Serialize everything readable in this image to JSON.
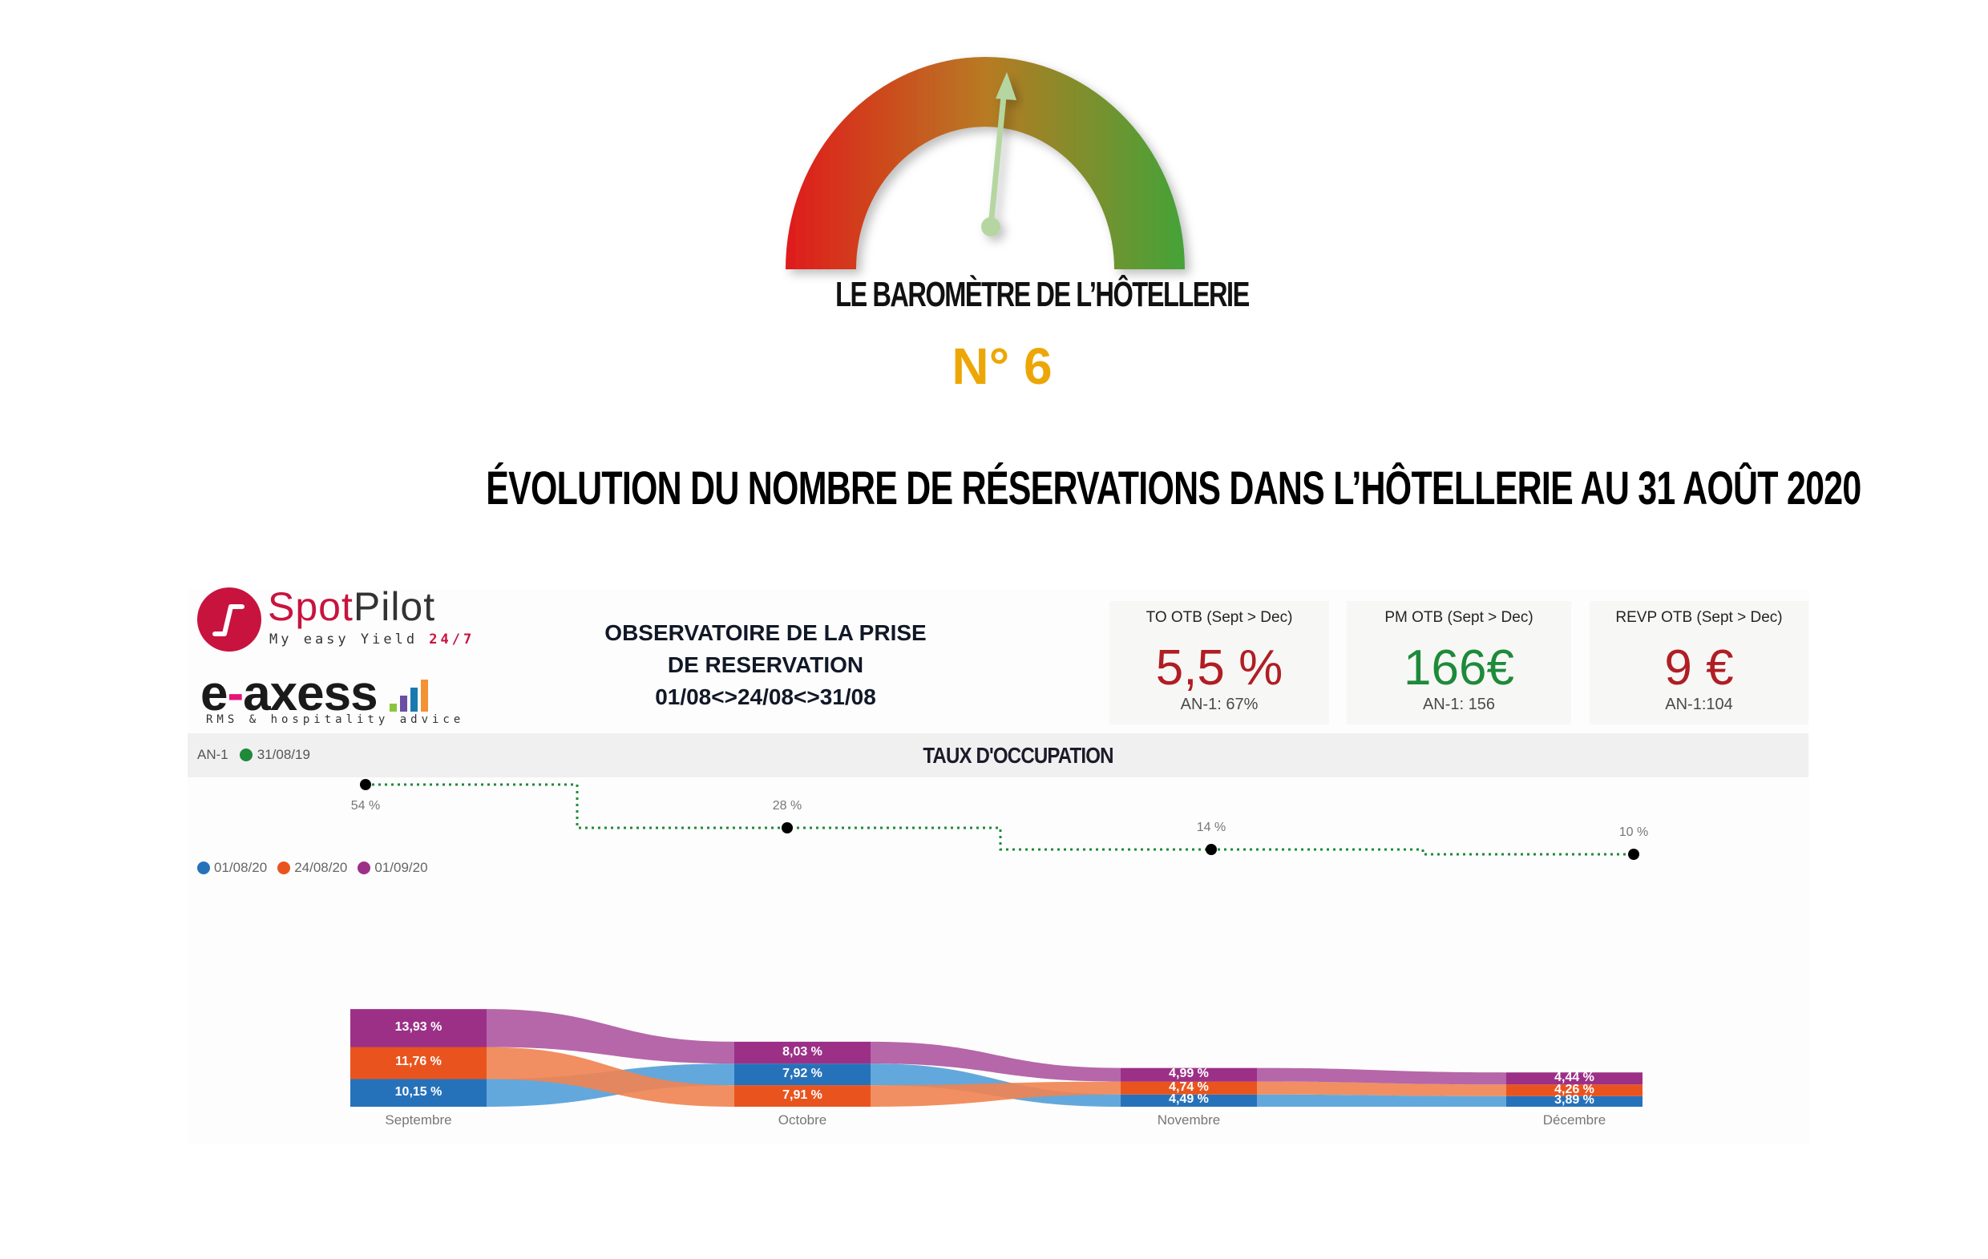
{
  "barometer": {
    "title": "LE BAROMÈTRE DE L’HÔTELLERIE",
    "issue": "N° 6",
    "gauge_colors": [
      "#E01B1B",
      "#B87A22",
      "#44A338"
    ],
    "needle_color": "#B5D6A1"
  },
  "main_title": "ÉVOLUTION DU NOMBRE DE RÉSERVATIONS DANS L’HÔTELLERIE AU 31 AOÛT 2020",
  "logos": {
    "spotpilot": {
      "name_a": "Spot",
      "name_b": "Pilot",
      "tagline": "My easy Yield ",
      "tagline_hl": "24/7"
    },
    "eaxess": {
      "name_a": "e",
      "name_dash": "-",
      "name_b": "axess",
      "tagline": "RMS & hospitality advice"
    }
  },
  "observatory": {
    "line1": "OBSERVATOIRE DE LA PRISE",
    "line2": "DE RESERVATION",
    "line3": "01/08<>24/08<>31/08"
  },
  "kpis": [
    {
      "title": "TO OTB (Sept > Dec)",
      "value": "5,5 %",
      "color": "#B01E23",
      "sub": "AN-1: 67%"
    },
    {
      "title": "PM OTB (Sept > Dec)",
      "value": "166€",
      "color": "#1E8A3A",
      "sub": "AN-1: 156"
    },
    {
      "title": "REVP OTB (Sept > Dec)",
      "value": "9 €",
      "color": "#B01E23",
      "sub": "AN-1:104"
    }
  ],
  "chart_header": {
    "title": "TAUX D'OCCUPATION",
    "an1_label": "AN-1",
    "an1_series": "31/08/19",
    "an1_color": "#1E8A3A"
  },
  "legend": [
    {
      "label": "01/08/20",
      "color": "#2672BA"
    },
    {
      "label": "24/08/20",
      "color": "#E9541E"
    },
    {
      "label": "01/09/20",
      "color": "#9C3087"
    }
  ],
  "chart_data": {
    "type": "sankey-ribbon",
    "title": "TAUX D'OCCUPATION",
    "categories": [
      "Septembre",
      "Octobre",
      "Novembre",
      "Décembre"
    ],
    "an1_line": {
      "name": "31/08/19",
      "type": "step-line",
      "values": [
        54,
        28,
        14,
        10
      ],
      "labels": [
        "54 %",
        "28 %",
        "14 %",
        "10 %"
      ]
    },
    "series": [
      {
        "name": "01/08/20",
        "color": "#2672BA",
        "values": [
          10.15,
          7.92,
          4.49,
          3.89
        ],
        "labels": [
          "10,15 %",
          "7,92 %",
          "4,49 %",
          "3,89 %"
        ]
      },
      {
        "name": "24/08/20",
        "color": "#E9541E",
        "values": [
          11.76,
          7.91,
          4.74,
          4.26
        ],
        "labels": [
          "11,76 %",
          "7,91 %",
          "4,74 %",
          "4,26 %"
        ]
      },
      {
        "name": "01/09/20",
        "color": "#9C3087",
        "values": [
          13.93,
          8.03,
          4.99,
          4.44
        ],
        "labels": [
          "13,93 %",
          "8,03 %",
          "4,99 %",
          "4,44 %"
        ]
      }
    ],
    "stack_order_top_to_bottom": [
      [
        "01/09/20",
        "24/08/20",
        "01/08/20"
      ],
      [
        "01/09/20",
        "01/08/20",
        "24/08/20"
      ],
      [
        "01/09/20",
        "24/08/20",
        "01/08/20"
      ],
      [
        "01/09/20",
        "24/08/20",
        "01/08/20"
      ]
    ],
    "legend_position": "top-left",
    "grid": false
  }
}
